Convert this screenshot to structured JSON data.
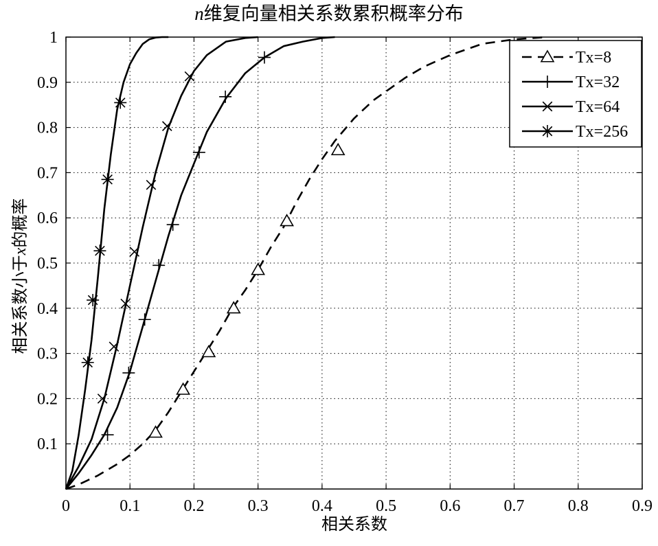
{
  "chart_data": {
    "type": "line",
    "title_prefix": "n",
    "title_rest": "维复向量相关系数累积概率分布",
    "xlabel": "相关系数",
    "ylabel_pre": "相关系数小于",
    "ylabel_var": "x",
    "ylabel_post": "的概率",
    "xlim": [
      0,
      0.9
    ],
    "ylim": [
      0,
      1
    ],
    "xticks": [
      "0",
      "0.1",
      "0.2",
      "0.3",
      "0.4",
      "0.5",
      "0.6",
      "0.7",
      "0.8",
      "0.9"
    ],
    "yticks": [
      "0.1",
      "0.2",
      "0.3",
      "0.4",
      "0.5",
      "0.6",
      "0.7",
      "0.8",
      "0.9",
      "1"
    ],
    "grid": true,
    "legend_position": "top-right",
    "series": [
      {
        "name": "Tx=8",
        "line_style": "dashed",
        "marker": "triangle",
        "x": [
          0,
          0.02,
          0.05,
          0.08,
          0.1,
          0.12,
          0.14,
          0.16,
          0.18,
          0.2,
          0.22,
          0.24,
          0.26,
          0.28,
          0.3,
          0.32,
          0.34,
          0.36,
          0.38,
          0.4,
          0.42,
          0.45,
          0.48,
          0.5,
          0.53,
          0.56,
          0.6,
          0.65,
          0.7,
          0.75
        ],
        "y": [
          0,
          0.01,
          0.03,
          0.055,
          0.075,
          0.1,
          0.13,
          0.17,
          0.215,
          0.26,
          0.305,
          0.35,
          0.4,
          0.44,
          0.485,
          0.535,
          0.58,
          0.635,
          0.685,
          0.73,
          0.77,
          0.82,
          0.86,
          0.88,
          0.91,
          0.935,
          0.96,
          0.985,
          0.995,
          1.0
        ],
        "marker_x": [
          0.14,
          0.183,
          0.223,
          0.262,
          0.3,
          0.345,
          0.425
        ],
        "marker_y": [
          0.125,
          0.22,
          0.303,
          0.4,
          0.485,
          0.593,
          0.75
        ]
      },
      {
        "name": "Tx=32",
        "line_style": "solid",
        "marker": "plus",
        "x": [
          0,
          0.02,
          0.04,
          0.06,
          0.08,
          0.1,
          0.12,
          0.14,
          0.16,
          0.18,
          0.2,
          0.22,
          0.25,
          0.28,
          0.31,
          0.34,
          0.37,
          0.4,
          0.42
        ],
        "y": [
          0,
          0.035,
          0.075,
          0.12,
          0.18,
          0.26,
          0.36,
          0.46,
          0.56,
          0.65,
          0.72,
          0.79,
          0.865,
          0.92,
          0.955,
          0.98,
          0.99,
          0.998,
          1.0
        ],
        "marker_x": [
          0.065,
          0.098,
          0.123,
          0.145,
          0.167,
          0.208,
          0.249,
          0.31
        ],
        "marker_y": [
          0.12,
          0.257,
          0.375,
          0.495,
          0.585,
          0.745,
          0.868,
          0.955
        ]
      },
      {
        "name": "Tx=64",
        "line_style": "solid",
        "marker": "x",
        "x": [
          0,
          0.02,
          0.04,
          0.06,
          0.08,
          0.1,
          0.12,
          0.14,
          0.16,
          0.18,
          0.2,
          0.22,
          0.25,
          0.28,
          0.3
        ],
        "y": [
          0,
          0.05,
          0.11,
          0.2,
          0.32,
          0.45,
          0.58,
          0.7,
          0.8,
          0.87,
          0.925,
          0.96,
          0.99,
          0.998,
          1.0
        ],
        "marker_x": [
          0.057,
          0.075,
          0.093,
          0.107,
          0.133,
          0.158,
          0.193
        ],
        "marker_y": [
          0.2,
          0.315,
          0.41,
          0.525,
          0.673,
          0.803,
          0.913
        ]
      },
      {
        "name": "Tx=256",
        "line_style": "solid",
        "marker": "star",
        "x": [
          0,
          0.01,
          0.02,
          0.03,
          0.04,
          0.05,
          0.06,
          0.07,
          0.08,
          0.09,
          0.1,
          0.11,
          0.12,
          0.13,
          0.14,
          0.15,
          0.16
        ],
        "y": [
          0,
          0.04,
          0.12,
          0.22,
          0.33,
          0.47,
          0.62,
          0.74,
          0.84,
          0.9,
          0.94,
          0.965,
          0.985,
          0.995,
          0.999,
          1.0,
          1.0
        ],
        "marker_x": [
          0.034,
          0.042,
          0.053,
          0.065,
          0.085
        ],
        "marker_y": [
          0.28,
          0.418,
          0.527,
          0.685,
          0.855
        ]
      }
    ]
  }
}
